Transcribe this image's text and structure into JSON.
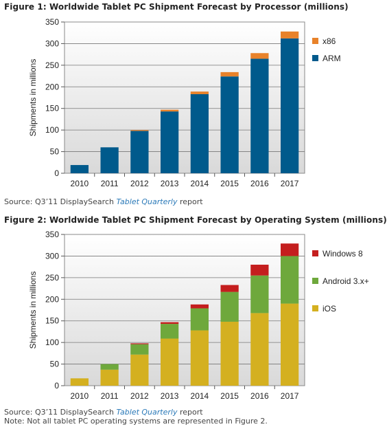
{
  "figure1": {
    "title": "Figure 1: Worldwide Tablet PC Shipment Forecast by Processor (millions)",
    "source_prefix": "Source: Q3’11 DisplaySearch ",
    "source_pub": "Tablet Quarterly",
    "source_suffix": " report"
  },
  "figure2": {
    "title": "Figure 2: Worldwide Tablet PC Shipment Forecast by Operating System (millions)",
    "source_prefix": "Source: Q3’11 DisplaySearch ",
    "source_pub": "Tablet Quarterly",
    "source_suffix": " report",
    "note": "Note: Not all tablet PC operating systems are represented in Figure 2."
  },
  "chart_data": [
    {
      "type": "bar",
      "stacked": true,
      "title": "Figure 1: Worldwide Tablet PC Shipment Forecast by Processor (millions)",
      "xlabel": "",
      "ylabel": "Shipments  in millions",
      "ylim": [
        0,
        350
      ],
      "yticks": [
        0,
        50,
        100,
        150,
        200,
        250,
        300,
        350
      ],
      "grid": true,
      "legend_position": "right",
      "categories": [
        "2010",
        "2011",
        "2012",
        "2013",
        "2014",
        "2015",
        "2016",
        "2017"
      ],
      "series": [
        {
          "name": "ARM",
          "color": "#005a8c",
          "values": [
            19,
            60,
            98,
            143,
            183,
            224,
            265,
            312
          ]
        },
        {
          "name": "x86",
          "color": "#e8822a",
          "values": [
            0,
            0,
            2,
            4,
            6,
            10,
            13,
            16
          ]
        }
      ],
      "legend_order": [
        "x86",
        "ARM"
      ]
    },
    {
      "type": "bar",
      "stacked": true,
      "title": "Figure 2: Worldwide Tablet PC Shipment Forecast by Operating System (millions)",
      "xlabel": "",
      "ylabel": "Shipments  in millions",
      "ylim": [
        0,
        350
      ],
      "yticks": [
        0,
        50,
        100,
        150,
        200,
        250,
        300,
        350
      ],
      "grid": true,
      "legend_position": "right",
      "categories": [
        "2010",
        "2011",
        "2012",
        "2013",
        "2014",
        "2015",
        "2016",
        "2017"
      ],
      "series": [
        {
          "name": "iOS",
          "color": "#d4b020",
          "values": [
            17,
            37,
            72,
            109,
            128,
            148,
            168,
            190
          ]
        },
        {
          "name": "Android 3.x+",
          "color": "#6ea83c",
          "values": [
            0,
            13,
            24,
            34,
            51,
            69,
            87,
            110
          ]
        },
        {
          "name": "Windows 8",
          "color": "#c41e1e",
          "values": [
            0,
            0,
            2,
            4,
            9,
            16,
            25,
            29
          ]
        }
      ],
      "legend_order": [
        "Windows 8",
        "Android 3.x+",
        "iOS"
      ]
    }
  ]
}
